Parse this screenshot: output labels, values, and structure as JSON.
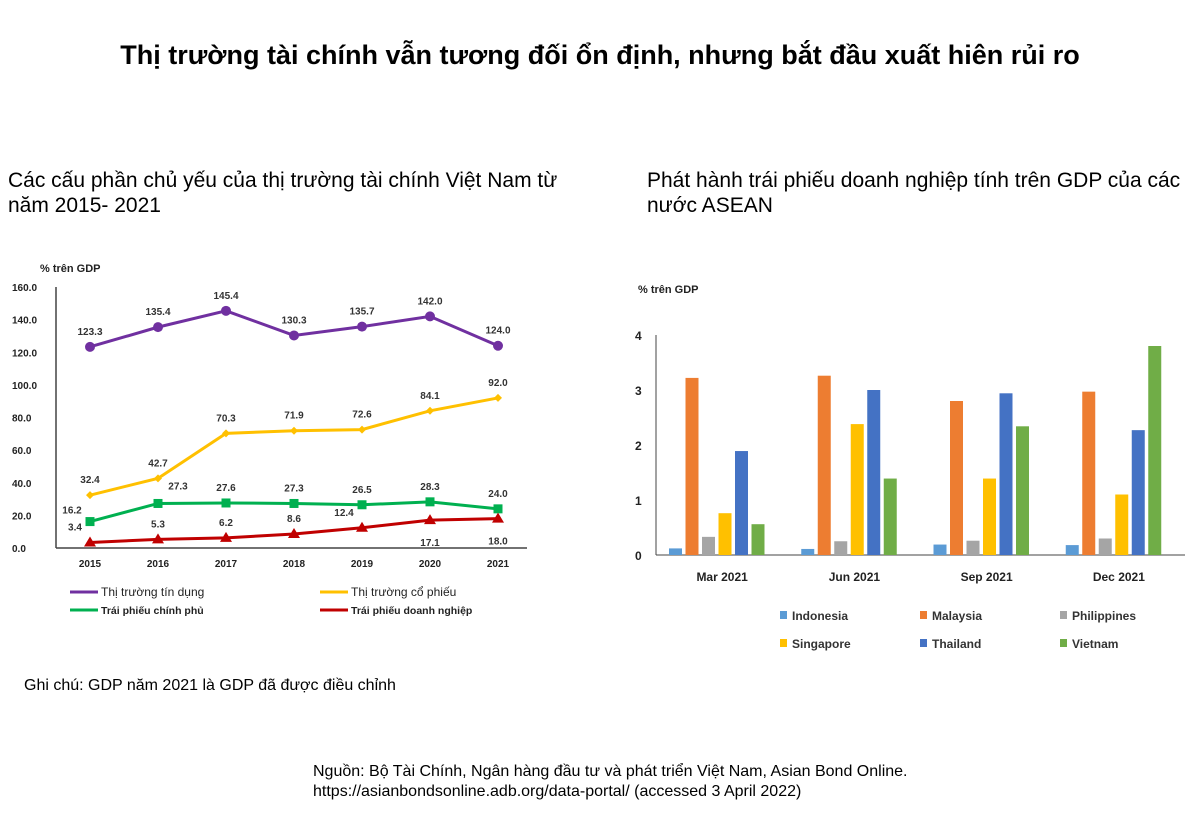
{
  "title": "Thị trường tài chính vẫn tương đối ổn định, nhưng bắt đầu xuất hiên rủi ro",
  "left_subtitle": "Các cấu phần chủ yếu của thị trường tài chính Việt Nam từ năm 2015- 2021",
  "right_subtitle": "Phát hành trái phiếu doanh nghiệp tính trên GDP của các nước ASEAN",
  "note": "Ghi chú: GDP năm 2021 là GDP đã được điều chỉnh",
  "source_line1": "Nguồn: Bộ Tài Chính,  Ngân hàng đầu tư và phát triển Việt Nam, Asian Bond Online.",
  "source_line2": "https://asianbondsonline.adb.org/data-portal/ (accessed 3 April 2022)",
  "chart_data": [
    {
      "type": "line",
      "ylabel": "% trên GDP",
      "ylim": [
        0,
        160
      ],
      "yticks": [
        "0.0",
        "20.0",
        "40.0",
        "60.0",
        "80.0",
        "100.0",
        "120.0",
        "140.0",
        "160.0"
      ],
      "categories": [
        "2015",
        "2016",
        "2017",
        "2018",
        "2019",
        "2020",
        "2021"
      ],
      "legend": "bottom",
      "grid": false,
      "series": [
        {
          "name": "Thị trường tín dụng",
          "color": "#7030A0",
          "marker": "circle",
          "values": [
            123.3,
            135.4,
            145.4,
            130.3,
            135.7,
            142.0,
            124.0
          ],
          "labels": [
            "123.3",
            "135.4",
            "145.4",
            "130.3",
            "135.7",
            "142.0",
            "124.0"
          ]
        },
        {
          "name": "Thị trường cổ phiếu",
          "color": "#FFC000",
          "marker": "diamond",
          "values": [
            32.4,
            42.7,
            70.3,
            71.9,
            72.6,
            84.1,
            92.0
          ],
          "labels": [
            "32.4",
            "42.7",
            "70.3",
            "71.9",
            "72.6",
            "84.1",
            "92.0"
          ]
        },
        {
          "name": "Trái phiếu chính phủ",
          "color": "#00B050",
          "marker": "square",
          "values": [
            16.2,
            27.3,
            27.6,
            27.3,
            26.5,
            28.3,
            24.0
          ],
          "labels": [
            "16.2",
            "27.3",
            "27.6",
            "27.3",
            "26.5",
            "28.3",
            "24.0"
          ]
        },
        {
          "name": "Trái phiếu doanh nghiệp",
          "color": "#C00000",
          "marker": "triangle",
          "values": [
            3.4,
            5.3,
            6.2,
            8.6,
            12.4,
            17.1,
            18.0
          ],
          "labels": [
            "3.4",
            "5.3",
            "6.2",
            "8.6",
            "12.4",
            "17.1",
            "18.0"
          ]
        }
      ]
    },
    {
      "type": "bar",
      "ylabel": "% trên GDP",
      "ylim": [
        0,
        4
      ],
      "yticks": [
        "0",
        "1",
        "2",
        "3",
        "4"
      ],
      "categories": [
        "Mar 2021",
        "Jun 2021",
        "Sep 2021",
        "Dec 2021"
      ],
      "legend": "bottom",
      "grid": false,
      "series": [
        {
          "name": "Indonesia",
          "color": "#5B9BD5",
          "values": [
            0.12,
            0.11,
            0.19,
            0.18
          ]
        },
        {
          "name": "Malaysia",
          "color": "#ED7D31",
          "values": [
            3.22,
            3.26,
            2.8,
            2.97
          ]
        },
        {
          "name": "Philippines",
          "color": "#A5A5A5",
          "values": [
            0.33,
            0.25,
            0.26,
            0.3
          ]
        },
        {
          "name": "Singapore",
          "color": "#FFC000",
          "values": [
            0.76,
            2.38,
            1.39,
            1.1
          ]
        },
        {
          "name": "Thailand",
          "color": "#4472C4",
          "values": [
            1.89,
            3.0,
            2.94,
            2.27
          ]
        },
        {
          "name": "Vietnam",
          "color": "#70AD47",
          "values": [
            0.56,
            1.39,
            2.34,
            3.8
          ]
        }
      ]
    }
  ]
}
